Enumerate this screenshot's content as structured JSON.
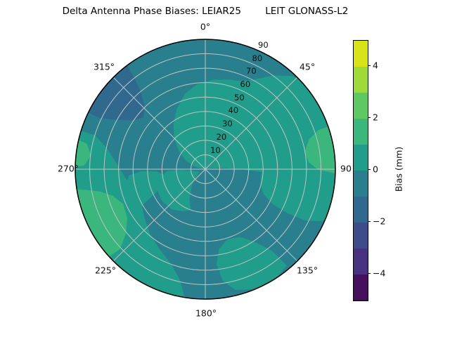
{
  "title": "Delta Antenna Phase Biases: LEIAR25        LEIT GLONASS-L2",
  "background": "#ffffff",
  "chart_data": {
    "type": "polar_filled_contour",
    "title": "Delta Antenna Phase Biases: LEIAR25        LEIT GLONASS-L2",
    "angle_convention": "clockwise_from_north",
    "azimuth_labels": [
      {
        "angle": 0,
        "label": "0°"
      },
      {
        "angle": 45,
        "label": "45°"
      },
      {
        "angle": 90,
        "label": "90"
      },
      {
        "angle": 135,
        "label": "135°"
      },
      {
        "angle": 180,
        "label": "180°"
      },
      {
        "angle": 225,
        "label": "225°"
      },
      {
        "angle": 270,
        "label": "270°"
      },
      {
        "angle": 315,
        "label": "315°"
      }
    ],
    "radial_ticks": [
      10,
      20,
      30,
      40,
      50,
      60,
      70,
      80,
      90
    ],
    "radial_range": [
      0,
      90
    ],
    "grid": true,
    "grid_color": "#bfc3c4",
    "colorbar": {
      "label": "Bias (mm)",
      "ticks": [
        "4",
        "2",
        "0",
        "−2",
        "−4"
      ],
      "tick_values": [
        4,
        2,
        0,
        -2,
        -4
      ],
      "min": -5,
      "max": 5,
      "levels": [
        -5,
        -4,
        -3,
        -2,
        -1,
        0,
        1,
        2,
        3,
        4,
        5
      ],
      "band_colors_top_to_bottom": [
        "#d8e219",
        "#a0da39",
        "#5ec962",
        "#3bb77d",
        "#219e8b",
        "#2a7f8e",
        "#31688e",
        "#3e4c8a",
        "#46327e",
        "#450f5c"
      ]
    },
    "base_region": {
      "level": "-1 to 0 mm",
      "color": "#2a7f8e"
    },
    "regions": [
      {
        "name": "bias-0-1-central-north",
        "level": "0 to 1 mm",
        "color": "#219e8b",
        "points": [
          [
            285,
            0
          ],
          [
            285,
            8
          ],
          [
            295,
            15
          ],
          [
            305,
            22
          ],
          [
            315,
            30
          ],
          [
            325,
            38
          ],
          [
            335,
            46
          ],
          [
            345,
            54
          ],
          [
            355,
            59
          ],
          [
            365,
            62
          ],
          [
            375,
            64
          ],
          [
            383,
            66
          ],
          [
            390,
            72
          ],
          [
            396,
            80
          ],
          [
            403,
            88
          ],
          [
            410,
            91
          ],
          [
            414,
            91
          ],
          [
            414,
            40
          ],
          [
            414,
            0
          ]
        ]
      },
      {
        "name": "bias-0-1-east",
        "level": "0 to 1 mm",
        "color": "#219e8b",
        "points": [
          [
            50,
            0
          ],
          [
            46,
            25
          ],
          [
            45,
            55
          ],
          [
            46,
            91
          ],
          [
            62,
            91
          ],
          [
            78,
            91
          ],
          [
            94,
            91
          ],
          [
            95,
            78
          ],
          [
            95,
            62
          ],
          [
            94,
            48
          ],
          [
            92,
            36
          ],
          [
            89,
            22
          ],
          [
            83,
            10
          ],
          [
            72,
            3
          ],
          [
            60,
            0
          ]
        ]
      },
      {
        "name": "bias-0-1-southeast-annex",
        "level": "0 to 1 mm",
        "color": "#219e8b",
        "points": [
          [
            82,
            50
          ],
          [
            87,
            42
          ],
          [
            96,
            39
          ],
          [
            106,
            40
          ],
          [
            113,
            44
          ],
          [
            117,
            52
          ],
          [
            118,
            64
          ],
          [
            117,
            78
          ],
          [
            114,
            88
          ],
          [
            112,
            91
          ],
          [
            98,
            91
          ],
          [
            86,
            91
          ],
          [
            83,
            82
          ],
          [
            81,
            66
          ]
        ]
      },
      {
        "name": "bias-0-1-south",
        "level": "0 to 1 mm",
        "color": "#219e8b",
        "points": [
          [
            140,
            87
          ],
          [
            141,
            73
          ],
          [
            146,
            61
          ],
          [
            153,
            53
          ],
          [
            162,
            51
          ],
          [
            170,
            56
          ],
          [
            173,
            66
          ],
          [
            171,
            78
          ],
          [
            166,
            86
          ],
          [
            157,
            90
          ],
          [
            147,
            90
          ]
        ]
      },
      {
        "name": "bias-0-1-southwest-band",
        "level": "0 to 1 mm",
        "color": "#219e8b",
        "points": [
          [
            189,
            91
          ],
          [
            205,
            91
          ],
          [
            222,
            91
          ],
          [
            240,
            91
          ],
          [
            258,
            91
          ],
          [
            274,
            91
          ],
          [
            287,
            91
          ],
          [
            287,
            80
          ],
          [
            282,
            70
          ],
          [
            274,
            62
          ],
          [
            264,
            56
          ],
          [
            253,
            51
          ],
          [
            243,
            50
          ],
          [
            232,
            54
          ],
          [
            221,
            59
          ],
          [
            210,
            64
          ],
          [
            200,
            70
          ],
          [
            193,
            79
          ]
        ]
      },
      {
        "name": "bias-0-1-west-inner",
        "level": "0 to 1 mm",
        "color": "#219e8b",
        "points": [
          [
            240,
            52
          ],
          [
            245,
            38
          ],
          [
            252,
            30
          ],
          [
            261,
            28
          ],
          [
            267,
            34
          ],
          [
            268,
            44
          ],
          [
            265,
            53
          ],
          [
            256,
            57
          ],
          [
            246,
            56
          ]
        ]
      },
      {
        "name": "bias-0-1-center-left",
        "level": "0 to 1 mm",
        "color": "#219e8b",
        "points": [
          [
            200,
            30
          ],
          [
            208,
            24
          ],
          [
            220,
            15
          ],
          [
            234,
            8
          ],
          [
            249,
            5
          ],
          [
            261,
            9
          ],
          [
            267,
            17
          ],
          [
            267,
            26
          ],
          [
            259,
            33
          ],
          [
            247,
            36
          ],
          [
            234,
            37
          ],
          [
            220,
            36
          ],
          [
            209,
            33
          ]
        ]
      },
      {
        "name": "bias-1-2-southwest",
        "level": "1 to 2 mm",
        "color": "#3bb77d",
        "points": [
          [
            228,
            91
          ],
          [
            227,
            81
          ],
          [
            231,
            71
          ],
          [
            238,
            64
          ],
          [
            247,
            62
          ],
          [
            254,
            67
          ],
          [
            258,
            75
          ],
          [
            260,
            84
          ],
          [
            261,
            91
          ],
          [
            249,
            91
          ],
          [
            238,
            91
          ]
        ]
      },
      {
        "name": "bias-1-2-east",
        "level": "1 to 2 mm",
        "color": "#3bb77d",
        "points": [
          [
            71,
            91
          ],
          [
            71,
            83
          ],
          [
            74,
            75
          ],
          [
            80,
            70
          ],
          [
            86,
            72
          ],
          [
            90,
            78
          ],
          [
            91,
            85
          ],
          [
            92,
            91
          ],
          [
            83,
            91
          ],
          [
            76,
            91
          ]
        ]
      },
      {
        "name": "bias-1-2-west-small",
        "level": "1 to 2 mm",
        "color": "#3bb77d",
        "points": [
          [
            271,
            91
          ],
          [
            272,
            84
          ],
          [
            277,
            80
          ],
          [
            282,
            84
          ],
          [
            283,
            91
          ],
          [
            277,
            91
          ]
        ]
      },
      {
        "name": "bias-neg2-neg1-northwest",
        "level": "-2 to -1 mm",
        "color": "#31688e",
        "points": [
          [
            296,
            91
          ],
          [
            296,
            82
          ],
          [
            299,
            71
          ],
          [
            304,
            61
          ],
          [
            310,
            56
          ],
          [
            316,
            61
          ],
          [
            320,
            70
          ],
          [
            322,
            80
          ],
          [
            323,
            91
          ],
          [
            312,
            91
          ],
          [
            304,
            91
          ]
        ]
      }
    ]
  }
}
